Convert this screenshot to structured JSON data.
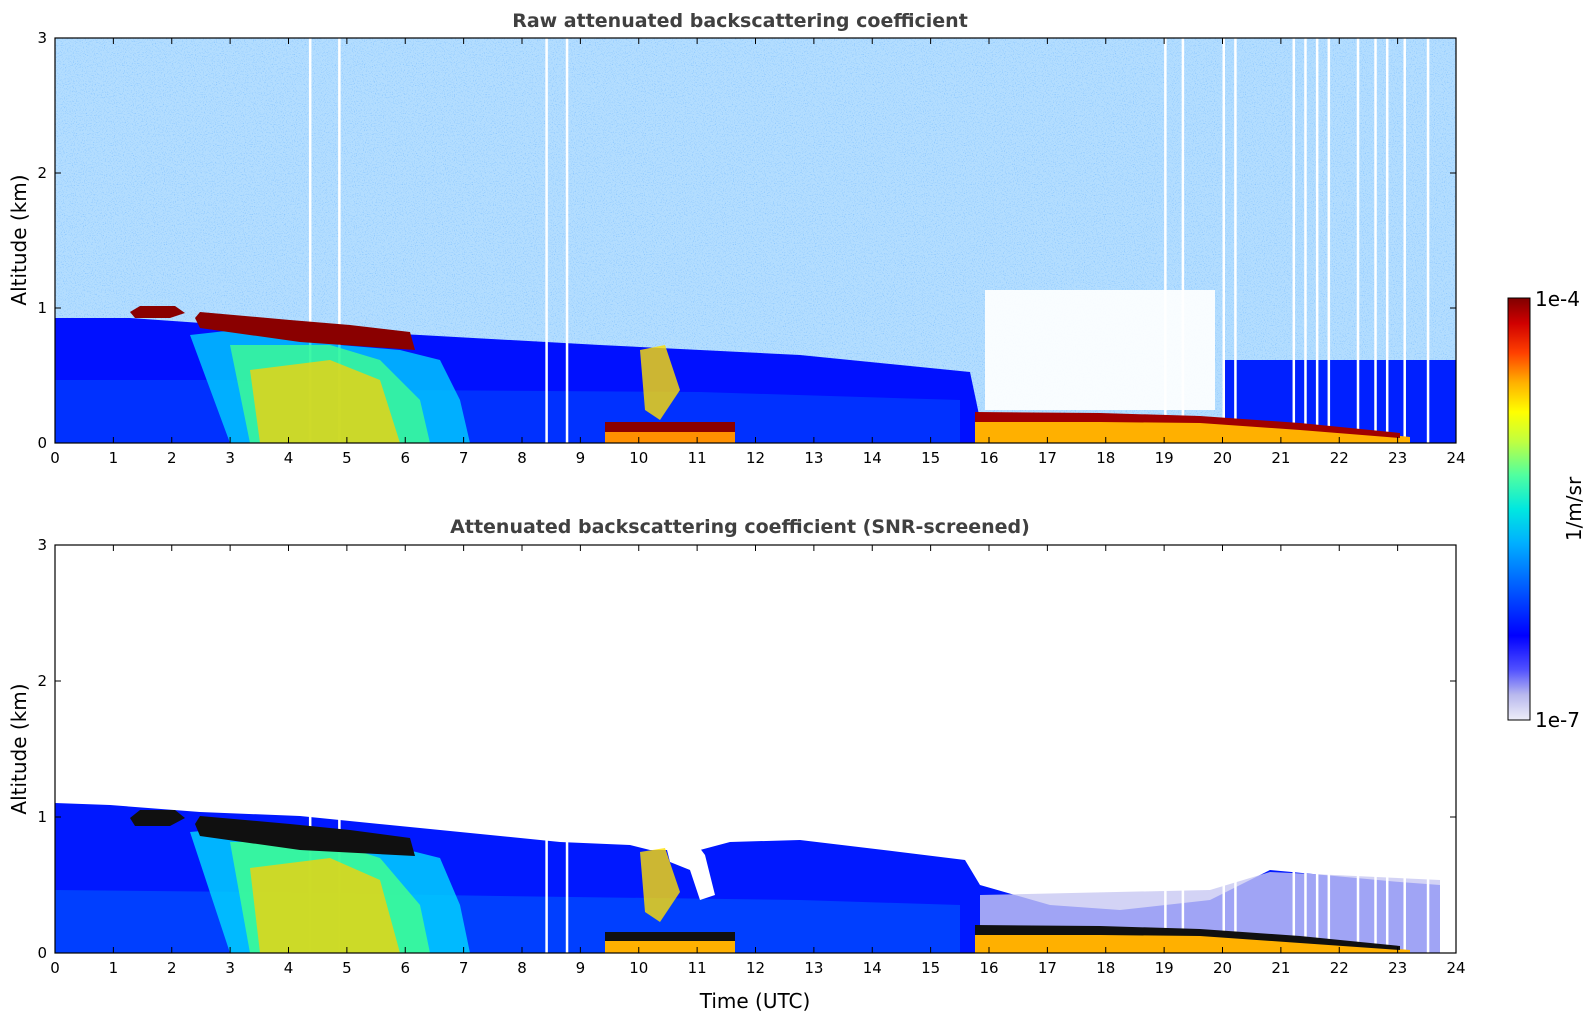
{
  "chart_data": [
    {
      "type": "heatmap",
      "title": "Raw attenuated backscattering coefficient",
      "xlabel": "",
      "ylabel": "Altitude (km)",
      "xlim": [
        0,
        24
      ],
      "ylim": [
        0,
        3
      ],
      "xticks": [
        "0",
        "1",
        "2",
        "3",
        "4",
        "5",
        "6",
        "7",
        "8",
        "9",
        "10",
        "11",
        "12",
        "13",
        "14",
        "15",
        "16",
        "17",
        "18",
        "19",
        "20",
        "21",
        "22",
        "23",
        "24"
      ],
      "yticks": [
        "0",
        "1",
        "2",
        "3"
      ],
      "cloud_top_km": [
        [
          1.3,
          0.98
        ],
        [
          2.0,
          0.98
        ],
        [
          2.5,
          0.95
        ],
        [
          3.5,
          0.92
        ],
        [
          4.5,
          0.87
        ],
        [
          5.5,
          0.82
        ],
        [
          6.2,
          0.78
        ],
        [
          9.5,
          0.18
        ],
        [
          10.5,
          0.18
        ],
        [
          11.5,
          0.18
        ],
        [
          15.9,
          0.22
        ],
        [
          17,
          0.24
        ],
        [
          18,
          0.25
        ],
        [
          19,
          0.24
        ],
        [
          20,
          0.21
        ],
        [
          21,
          0.18
        ],
        [
          22,
          0.12
        ],
        [
          23,
          0.09
        ]
      ]
    },
    {
      "type": "heatmap",
      "title": "Attenuated backscattering coefficient (SNR-screened)",
      "xlabel": "Time (UTC)",
      "ylabel": "Altitude (km)",
      "xlim": [
        0,
        24
      ],
      "ylim": [
        0,
        3
      ],
      "xticks": [
        "0",
        "1",
        "2",
        "3",
        "4",
        "5",
        "6",
        "7",
        "8",
        "9",
        "10",
        "11",
        "12",
        "13",
        "14",
        "15",
        "16",
        "17",
        "18",
        "19",
        "20",
        "21",
        "22",
        "23",
        "24"
      ],
      "yticks": [
        "0",
        "1",
        "2",
        "3"
      ],
      "boundary_layer_top_km": [
        [
          0,
          1.1
        ],
        [
          1,
          1.05
        ],
        [
          2,
          1.0
        ],
        [
          3,
          0.98
        ],
        [
          4,
          0.95
        ],
        [
          6,
          0.88
        ],
        [
          7,
          0.85
        ],
        [
          9,
          0.82
        ],
        [
          10,
          0.78
        ],
        [
          12,
          0.85
        ],
        [
          14,
          0.7
        ],
        [
          15.5,
          0.6
        ],
        [
          16,
          0.4
        ],
        [
          18,
          0.33
        ],
        [
          20,
          0.45
        ],
        [
          21,
          0.6
        ],
        [
          23,
          0.55
        ],
        [
          23.8,
          0.5
        ]
      ]
    }
  ],
  "colorbar": {
    "label": "1/m/sr",
    "max_label": "1e-4",
    "min_label": "1e-7",
    "colormap": [
      "#e9e9f7",
      "#c6c6ef",
      "#8080ff",
      "#0000ff",
      "#0050ff",
      "#00a0ff",
      "#00e5e5",
      "#40ffb0",
      "#b0ff40",
      "#ffff00",
      "#ffb000",
      "#ff5000",
      "#e00000",
      "#800000"
    ]
  }
}
